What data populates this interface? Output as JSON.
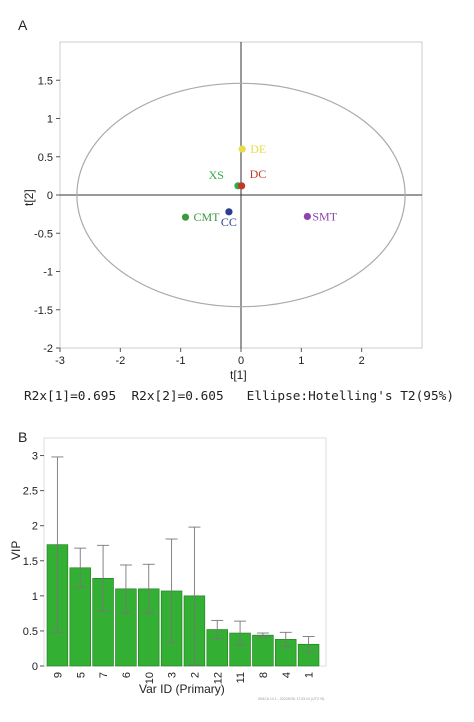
{
  "chart_data": [
    {
      "type": "scatter",
      "panel_label": "A",
      "xlabel": "t[1]",
      "ylabel": "t[2]",
      "xlim": [
        -3,
        3
      ],
      "ylim": [
        -2,
        2
      ],
      "xticks": [
        "-3",
        "-2",
        "-1",
        "0",
        "1",
        "2"
      ],
      "yticks": [
        "1.5",
        "1",
        "0.5",
        "0",
        "-0.5",
        "-1",
        "-1.5",
        "-2"
      ],
      "grid": false,
      "points": [
        {
          "name": "DE",
          "x": 0.02,
          "y": 0.6,
          "color": "#e8dc4a"
        },
        {
          "name": "XS",
          "x": -0.05,
          "y": 0.12,
          "color": "#35a84a"
        },
        {
          "name": "DC",
          "x": 0.01,
          "y": 0.12,
          "color": "#c0392b"
        },
        {
          "name": "CMT",
          "x": -0.92,
          "y": -0.29,
          "color": "#3c9a3c"
        },
        {
          "name": "CC",
          "x": -0.2,
          "y": -0.22,
          "color": "#2c3e90"
        },
        {
          "name": "SMT",
          "x": 1.1,
          "y": -0.28,
          "color": "#8e44ad"
        }
      ],
      "ellipse": {
        "cx": 0,
        "cy": 0,
        "rx": 2.72,
        "ry": 1.46
      },
      "footer": "R2x[1]=0.695  R2x[2]=0.605   Ellipse:Hotelling's T2(95%)"
    },
    {
      "type": "bar",
      "panel_label": "B",
      "xlabel": "Var ID (Primary)",
      "ylabel": "VIP",
      "ylim": [
        0,
        3.25
      ],
      "yticks": [
        "0",
        "0.5",
        "1",
        "1.5",
        "2",
        "2.5",
        "3"
      ],
      "bar_color": "#33b033",
      "categories": [
        "9",
        "5",
        "7",
        "6",
        "10",
        "3",
        "2",
        "12",
        "11",
        "8",
        "4",
        "1"
      ],
      "values": [
        1.73,
        1.4,
        1.25,
        1.1,
        1.1,
        1.07,
        1.0,
        0.52,
        0.47,
        0.44,
        0.38,
        0.31
      ],
      "error": [
        1.25,
        0.28,
        0.47,
        0.34,
        0.35,
        0.74,
        0.98,
        0.13,
        0.17,
        0.03,
        0.1,
        0.11
      ],
      "watermark": "SIMCA 14.1 - 2022/6/30 17:03:24 (UTC+8)"
    }
  ]
}
